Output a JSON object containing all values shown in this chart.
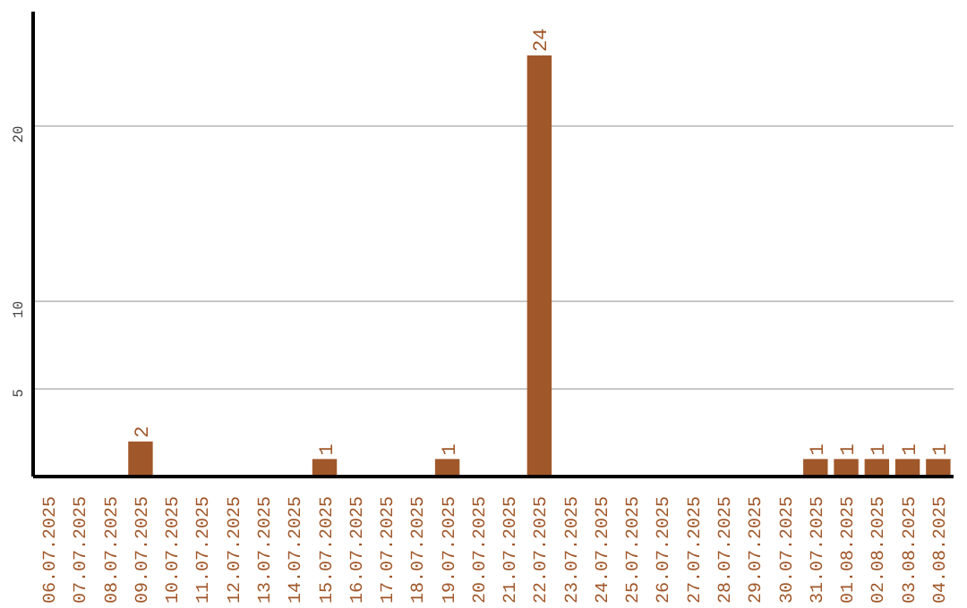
{
  "chart_data": {
    "type": "bar",
    "categories": [
      "06.07.2025",
      "07.07.2025",
      "08.07.2025",
      "09.07.2025",
      "10.07.2025",
      "11.07.2025",
      "12.07.2025",
      "13.07.2025",
      "14.07.2025",
      "15.07.2025",
      "16.07.2025",
      "17.07.2025",
      "18.07.2025",
      "19.07.2025",
      "20.07.2025",
      "21.07.2025",
      "22.07.2025",
      "23.07.2025",
      "24.07.2025",
      "25.07.2025",
      "26.07.2025",
      "27.07.2025",
      "28.07.2025",
      "29.07.2025",
      "30.07.2025",
      "31.07.2025",
      "01.08.2025",
      "02.08.2025",
      "03.08.2025",
      "04.08.2025"
    ],
    "values": [
      0,
      0,
      0,
      2,
      0,
      0,
      0,
      0,
      0,
      1,
      0,
      0,
      0,
      1,
      0,
      0,
      24,
      0,
      0,
      0,
      0,
      0,
      0,
      0,
      0,
      1,
      1,
      1,
      1,
      1
    ],
    "value_labels": [
      null,
      null,
      null,
      "2",
      null,
      null,
      null,
      null,
      null,
      "1",
      null,
      null,
      null,
      "1",
      null,
      null,
      "24",
      null,
      null,
      null,
      null,
      null,
      null,
      null,
      null,
      "1",
      "1",
      "1",
      "1",
      "1"
    ],
    "color": "#a0572a",
    "ylim": [
      0,
      26.5
    ],
    "yticks": [
      5,
      10,
      20
    ],
    "grid": "y"
  }
}
